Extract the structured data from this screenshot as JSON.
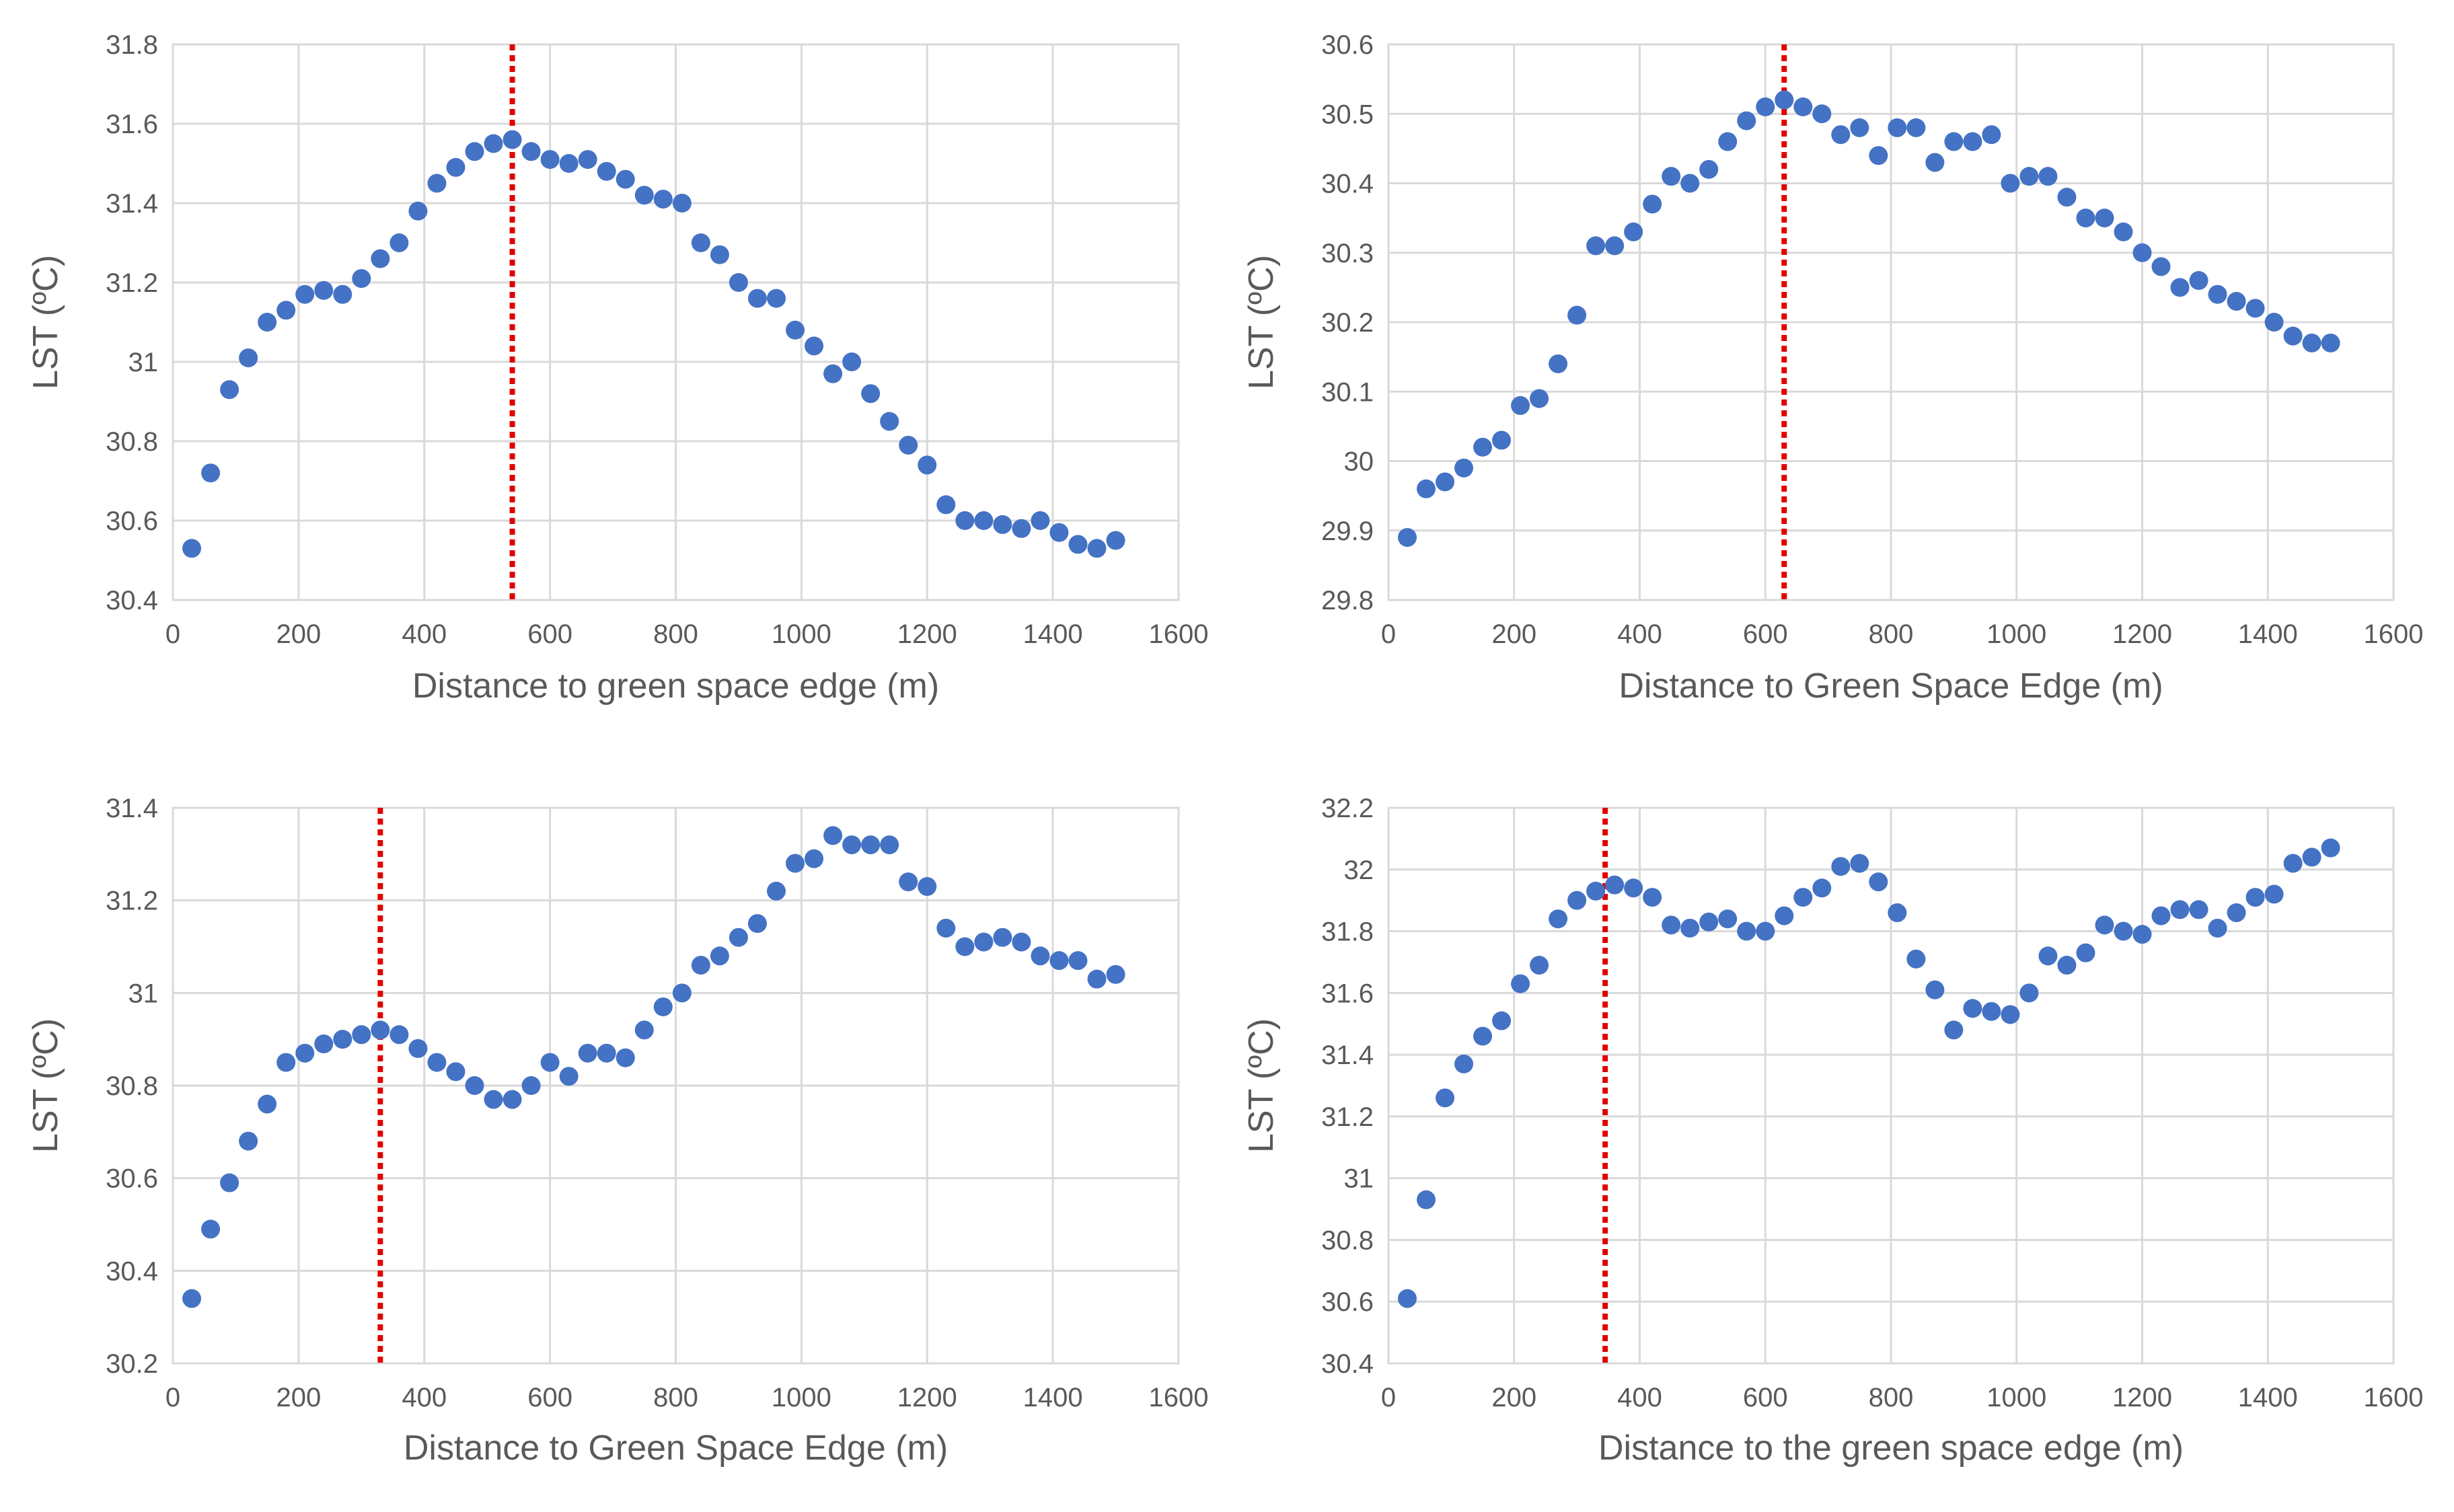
{
  "chart_data": [
    {
      "type": "scatter",
      "title": "",
      "xlabel": "Distance to green space edge (m)",
      "ylabel": "LST (ºC)",
      "xlim": [
        0,
        1600
      ],
      "ylim": [
        30.4,
        31.8
      ],
      "xticks": [
        "0",
        "200",
        "400",
        "600",
        "800",
        "1000",
        "1200",
        "1400",
        "1600"
      ],
      "yticks": [
        "30.4",
        "30.6",
        "30.8",
        "31",
        "31.2",
        "31.4",
        "31.6",
        "31.8"
      ],
      "grid": true,
      "marker_color": "#4472c4",
      "reference_line": {
        "x": 540,
        "color": "#e00000",
        "style": "dotted"
      },
      "x": [
        30,
        60,
        90,
        120,
        150,
        180,
        210,
        240,
        270,
        300,
        330,
        360,
        390,
        420,
        450,
        480,
        510,
        540,
        570,
        600,
        630,
        660,
        690,
        720,
        750,
        780,
        810,
        840,
        870,
        900,
        930,
        960,
        990,
        1020,
        1050,
        1080,
        1110,
        1140,
        1170,
        1200,
        1230,
        1260,
        1290,
        1320,
        1350,
        1380,
        1410,
        1440,
        1470,
        1500
      ],
      "y": [
        30.53,
        30.72,
        30.93,
        31.01,
        31.1,
        31.13,
        31.17,
        31.18,
        31.17,
        31.21,
        31.26,
        31.3,
        31.38,
        31.45,
        31.49,
        31.53,
        31.55,
        31.56,
        31.53,
        31.51,
        31.5,
        31.51,
        31.48,
        31.46,
        31.42,
        31.41,
        31.4,
        31.3,
        31.27,
        31.2,
        31.16,
        31.16,
        31.08,
        31.04,
        30.97,
        31.0,
        30.92,
        30.85,
        30.79,
        30.74,
        30.64,
        30.6,
        30.6,
        30.59,
        30.58,
        30.6,
        30.57,
        30.54,
        30.53,
        30.55
      ]
    },
    {
      "type": "scatter",
      "title": "",
      "xlabel": "Distance to Green Space Edge (m)",
      "ylabel": "LST (ºC)",
      "xlim": [
        0,
        1600
      ],
      "ylim": [
        29.8,
        30.6
      ],
      "xticks": [
        "0",
        "200",
        "400",
        "600",
        "800",
        "1000",
        "1200",
        "1400",
        "1600"
      ],
      "yticks": [
        "29.8",
        "29.9",
        "30",
        "30.1",
        "30.2",
        "30.3",
        "30.4",
        "30.5",
        "30.6"
      ],
      "grid": true,
      "marker_color": "#4472c4",
      "reference_line": {
        "x": 630,
        "color": "#e00000",
        "style": "dotted"
      },
      "x": [
        30,
        60,
        90,
        120,
        150,
        180,
        210,
        240,
        270,
        300,
        330,
        360,
        390,
        420,
        450,
        480,
        510,
        540,
        570,
        600,
        630,
        660,
        690,
        720,
        750,
        780,
        810,
        840,
        870,
        900,
        930,
        960,
        990,
        1020,
        1050,
        1080,
        1110,
        1140,
        1170,
        1200,
        1230,
        1260,
        1290,
        1320,
        1350,
        1380,
        1410,
        1440,
        1470,
        1500
      ],
      "y": [
        29.89,
        29.96,
        29.97,
        29.99,
        30.02,
        30.03,
        30.08,
        30.09,
        30.14,
        30.21,
        30.31,
        30.31,
        30.33,
        30.37,
        30.41,
        30.4,
        30.42,
        30.46,
        30.49,
        30.51,
        30.52,
        30.51,
        30.5,
        30.47,
        30.48,
        30.44,
        30.48,
        30.48,
        30.43,
        30.46,
        30.46,
        30.47,
        30.4,
        30.41,
        30.41,
        30.38,
        30.35,
        30.35,
        30.33,
        30.3,
        30.28,
        30.25,
        30.26,
        30.24,
        30.23,
        30.22,
        30.2,
        30.18,
        30.17,
        30.17
      ]
    },
    {
      "type": "scatter",
      "title": "",
      "xlabel": "Distance to Green Space Edge (m)",
      "ylabel": "LST (ºC)",
      "xlim": [
        0,
        1600
      ],
      "ylim": [
        30.2,
        31.4
      ],
      "xticks": [
        "0",
        "200",
        "400",
        "600",
        "800",
        "1000",
        "1200",
        "1400",
        "1600"
      ],
      "yticks": [
        "30.2",
        "30.4",
        "30.6",
        "30.8",
        "31",
        "31.2",
        "31.4"
      ],
      "grid": true,
      "marker_color": "#4472c4",
      "reference_line": {
        "x": 330,
        "color": "#e00000",
        "style": "dotted"
      },
      "x": [
        30,
        60,
        90,
        120,
        150,
        180,
        210,
        240,
        270,
        300,
        330,
        360,
        390,
        420,
        450,
        480,
        510,
        540,
        570,
        600,
        630,
        660,
        690,
        720,
        750,
        780,
        810,
        840,
        870,
        900,
        930,
        960,
        990,
        1020,
        1050,
        1080,
        1110,
        1140,
        1170,
        1200,
        1230,
        1260,
        1290,
        1320,
        1350,
        1380,
        1410,
        1440,
        1470,
        1500
      ],
      "y": [
        30.34,
        30.49,
        30.59,
        30.68,
        30.76,
        30.85,
        30.87,
        30.89,
        30.9,
        30.91,
        30.92,
        30.91,
        30.88,
        30.85,
        30.83,
        30.8,
        30.77,
        30.77,
        30.8,
        30.85,
        30.82,
        30.87,
        30.87,
        30.86,
        30.92,
        30.97,
        31.0,
        31.06,
        31.08,
        31.12,
        31.15,
        31.22,
        31.28,
        31.29,
        31.34,
        31.32,
        31.32,
        31.32,
        31.24,
        31.23,
        31.14,
        31.1,
        31.11,
        31.12,
        31.11,
        31.08,
        31.07,
        31.07,
        31.03,
        31.04
      ]
    },
    {
      "type": "scatter",
      "title": "",
      "xlabel": "Distance to the green space edge (m)",
      "ylabel": "LST (ºC)",
      "xlim": [
        0,
        1600
      ],
      "ylim": [
        30.4,
        32.2
      ],
      "xticks": [
        "0",
        "200",
        "400",
        "600",
        "800",
        "1000",
        "1200",
        "1400",
        "1600"
      ],
      "yticks": [
        "30.4",
        "30.6",
        "30.8",
        "31",
        "31.2",
        "31.4",
        "31.6",
        "31.8",
        "32",
        "32.2"
      ],
      "grid": true,
      "marker_color": "#4472c4",
      "reference_line": {
        "x": 345,
        "color": "#e00000",
        "style": "dotted"
      },
      "x": [
        30,
        60,
        90,
        120,
        150,
        180,
        210,
        240,
        270,
        300,
        330,
        360,
        390,
        420,
        450,
        480,
        510,
        540,
        570,
        600,
        630,
        660,
        690,
        720,
        750,
        780,
        810,
        840,
        870,
        900,
        930,
        960,
        990,
        1020,
        1050,
        1080,
        1110,
        1140,
        1170,
        1200,
        1230,
        1260,
        1290,
        1320,
        1350,
        1380,
        1410,
        1440,
        1470,
        1500
      ],
      "y": [
        30.61,
        30.93,
        31.26,
        31.37,
        31.46,
        31.51,
        31.63,
        31.69,
        31.84,
        31.9,
        31.93,
        31.95,
        31.94,
        31.91,
        31.82,
        31.81,
        31.83,
        31.84,
        31.8,
        31.8,
        31.85,
        31.91,
        31.94,
        32.01,
        32.02,
        31.96,
        31.86,
        31.71,
        31.61,
        31.48,
        31.55,
        31.54,
        31.53,
        31.6,
        31.72,
        31.69,
        31.73,
        31.82,
        31.8,
        31.79,
        31.85,
        31.87,
        31.87,
        31.81,
        31.86,
        31.91,
        31.92,
        32.02,
        32.04,
        32.07
      ]
    }
  ]
}
